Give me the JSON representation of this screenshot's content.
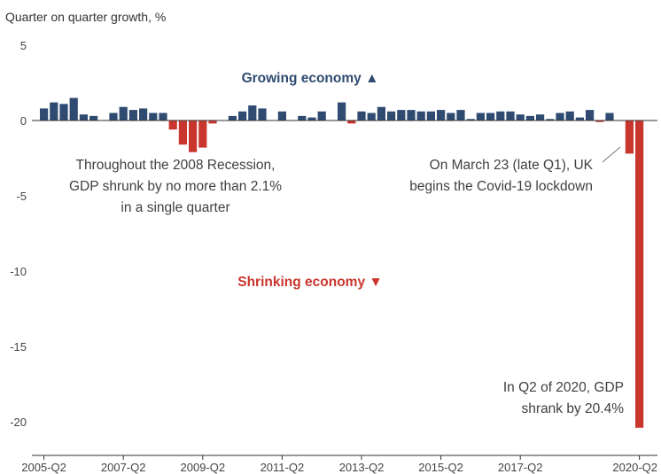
{
  "chart_data": {
    "type": "bar",
    "y_axis_title": "Quarter on quarter growth, %",
    "ylim": [
      -21.5,
      5
    ],
    "y_ticks": [
      5,
      0,
      -5,
      -10,
      -15,
      -20
    ],
    "y_tick_labels": [
      "5",
      "0",
      "-5",
      "-10",
      "-15",
      "-20"
    ],
    "grid": false,
    "x_tick_labels": [
      "2005-Q2",
      "2007-Q2",
      "2009-Q2",
      "2011-Q2",
      "2013-Q2",
      "2015-Q2",
      "2017-Q2",
      "2020-Q2"
    ],
    "x_tick_positions": [
      "2005-Q2",
      "2007-Q2",
      "2009-Q2",
      "2011-Q2",
      "2013-Q2",
      "2015-Q2",
      "2017-Q2",
      "2020-Q2"
    ],
    "categories": [
      "2005-Q2",
      "2005-Q3",
      "2005-Q4",
      "2006-Q1",
      "2006-Q2",
      "2006-Q3",
      "2006-Q4",
      "2007-Q1",
      "2007-Q2",
      "2007-Q3",
      "2007-Q4",
      "2008-Q1",
      "2008-Q2",
      "2008-Q3",
      "2008-Q4",
      "2009-Q1",
      "2009-Q2",
      "2009-Q3",
      "2009-Q4",
      "2010-Q1",
      "2010-Q2",
      "2010-Q3",
      "2010-Q4",
      "2011-Q1",
      "2011-Q2",
      "2011-Q3",
      "2011-Q4",
      "2012-Q1",
      "2012-Q2",
      "2012-Q3",
      "2012-Q4",
      "2013-Q1",
      "2013-Q2",
      "2013-Q3",
      "2013-Q4",
      "2014-Q1",
      "2014-Q2",
      "2014-Q3",
      "2014-Q4",
      "2015-Q1",
      "2015-Q2",
      "2015-Q3",
      "2015-Q4",
      "2016-Q1",
      "2016-Q2",
      "2016-Q3",
      "2016-Q4",
      "2017-Q1",
      "2017-Q2",
      "2017-Q3",
      "2017-Q4",
      "2018-Q1",
      "2018-Q2",
      "2018-Q3",
      "2018-Q4",
      "2019-Q1",
      "2019-Q2",
      "2019-Q3",
      "2019-Q4",
      "2020-Q1",
      "2020-Q2"
    ],
    "values": [
      0.8,
      1.2,
      1.1,
      1.5,
      0.4,
      0.3,
      0.0,
      0.5,
      0.9,
      0.7,
      0.8,
      0.5,
      0.5,
      -0.6,
      -1.6,
      -2.1,
      -1.8,
      -0.2,
      0.0,
      0.3,
      0.6,
      1.0,
      0.8,
      0.0,
      0.6,
      0.0,
      0.3,
      0.2,
      0.6,
      0.0,
      1.2,
      -0.2,
      0.6,
      0.5,
      0.9,
      0.6,
      0.7,
      0.7,
      0.6,
      0.6,
      0.7,
      0.5,
      0.7,
      0.1,
      0.5,
      0.5,
      0.6,
      0.6,
      0.4,
      0.3,
      0.4,
      0.1,
      0.5,
      0.6,
      0.2,
      0.7,
      -0.1,
      0.5,
      0.0,
      -2.2,
      -20.4
    ],
    "colors": {
      "positive": "#2f4b71",
      "negative": "#c9362d",
      "axis": "#333333"
    },
    "annotations": {
      "growing": "Growing economy ▲",
      "shrinking": "Shrinking economy ▼",
      "recession": [
        "Throughout the 2008 Recession,",
        "GDP shrunk by no more than 2.1%",
        "in a single quarter"
      ],
      "lockdown": [
        "On March 23 (late Q1), UK",
        "begins the Covid-19 lockdown"
      ],
      "q2_2020": [
        "In Q2 of 2020, GDP",
        "shrank by 20.4%"
      ]
    }
  }
}
